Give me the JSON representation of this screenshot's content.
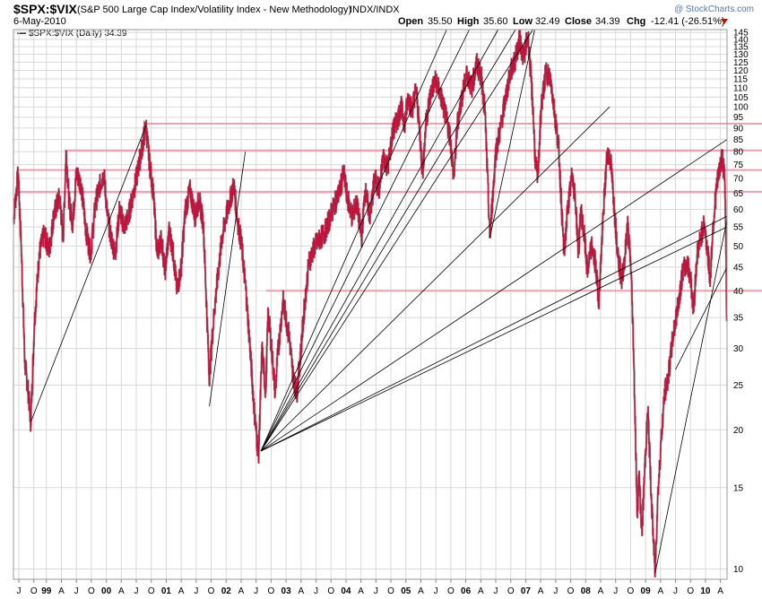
{
  "header": {
    "symbol": "$SPX:$VIX",
    "description": "(S&P 500 Large Cap Index/Volatility Index - New Methodology)",
    "exchange": "INDX/INDX",
    "date": "6-May-2010",
    "watermark": "@ StockCharts.com",
    "legend": "$SPX:$VIX (Daily) 34.39",
    "ohlc": [
      {
        "label": "Open",
        "value": "35.50"
      },
      {
        "label": "High",
        "value": "35.60"
      },
      {
        "label": "Low",
        "value": "32.49"
      },
      {
        "label": "Close",
        "value": "34.39"
      },
      {
        "label": "Chg",
        "value": "-12.41 (-26.51%)"
      }
    ]
  },
  "colors": {
    "price": "#c0143c",
    "price_dark": "#3a0a14",
    "grid": "#d8d8d8",
    "hline": "#e8a0b0",
    "trend": "#000000",
    "chg_arrow": "#cc0000"
  },
  "chart_data": {
    "type": "line",
    "scale": "log",
    "ylim": [
      9.5,
      147
    ],
    "x_range": [
      1998.45,
      2010.36
    ],
    "y_ticks": [
      10,
      15,
      20,
      25,
      30,
      35,
      40,
      45,
      50,
      55,
      60,
      65,
      70,
      75,
      80,
      85,
      90,
      95,
      100,
      105,
      110,
      115,
      120,
      125,
      130,
      135,
      140,
      145
    ],
    "x_ticks": [
      {
        "t": 1998.54,
        "label": "J",
        "bold": false
      },
      {
        "t": 1998.79,
        "label": "O",
        "bold": false
      },
      {
        "t": 1999.0,
        "label": "99",
        "bold": true
      },
      {
        "t": 1999.25,
        "label": "A",
        "bold": false
      },
      {
        "t": 1999.5,
        "label": "J",
        "bold": false
      },
      {
        "t": 1999.75,
        "label": "O",
        "bold": false
      },
      {
        "t": 2000.0,
        "label": "00",
        "bold": true
      },
      {
        "t": 2000.25,
        "label": "A",
        "bold": false
      },
      {
        "t": 2000.5,
        "label": "J",
        "bold": false
      },
      {
        "t": 2000.75,
        "label": "O",
        "bold": false
      },
      {
        "t": 2001.0,
        "label": "01",
        "bold": true
      },
      {
        "t": 2001.25,
        "label": "A",
        "bold": false
      },
      {
        "t": 2001.5,
        "label": "J",
        "bold": false
      },
      {
        "t": 2001.75,
        "label": "O",
        "bold": false
      },
      {
        "t": 2002.0,
        "label": "02",
        "bold": true
      },
      {
        "t": 2002.25,
        "label": "A",
        "bold": false
      },
      {
        "t": 2002.5,
        "label": "J",
        "bold": false
      },
      {
        "t": 2002.75,
        "label": "O",
        "bold": false
      },
      {
        "t": 2003.0,
        "label": "03",
        "bold": true
      },
      {
        "t": 2003.25,
        "label": "A",
        "bold": false
      },
      {
        "t": 2003.5,
        "label": "J",
        "bold": false
      },
      {
        "t": 2003.75,
        "label": "O",
        "bold": false
      },
      {
        "t": 2004.0,
        "label": "04",
        "bold": true
      },
      {
        "t": 2004.25,
        "label": "A",
        "bold": false
      },
      {
        "t": 2004.5,
        "label": "J",
        "bold": false
      },
      {
        "t": 2004.75,
        "label": "O",
        "bold": false
      },
      {
        "t": 2005.0,
        "label": "05",
        "bold": true
      },
      {
        "t": 2005.25,
        "label": "A",
        "bold": false
      },
      {
        "t": 2005.5,
        "label": "J",
        "bold": false
      },
      {
        "t": 2005.75,
        "label": "O",
        "bold": false
      },
      {
        "t": 2006.0,
        "label": "06",
        "bold": true
      },
      {
        "t": 2006.25,
        "label": "A",
        "bold": false
      },
      {
        "t": 2006.5,
        "label": "J",
        "bold": false
      },
      {
        "t": 2006.75,
        "label": "O",
        "bold": false
      },
      {
        "t": 2007.0,
        "label": "07",
        "bold": true
      },
      {
        "t": 2007.25,
        "label": "A",
        "bold": false
      },
      {
        "t": 2007.5,
        "label": "J",
        "bold": false
      },
      {
        "t": 2007.75,
        "label": "O",
        "bold": false
      },
      {
        "t": 2008.0,
        "label": "08",
        "bold": true
      },
      {
        "t": 2008.25,
        "label": "A",
        "bold": false
      },
      {
        "t": 2008.5,
        "label": "J",
        "bold": false
      },
      {
        "t": 2008.75,
        "label": "O",
        "bold": false
      },
      {
        "t": 2009.0,
        "label": "09",
        "bold": true
      },
      {
        "t": 2009.25,
        "label": "A",
        "bold": false
      },
      {
        "t": 2009.5,
        "label": "J",
        "bold": false
      },
      {
        "t": 2009.75,
        "label": "O",
        "bold": false
      },
      {
        "t": 2010.0,
        "label": "10",
        "bold": true
      },
      {
        "t": 2010.25,
        "label": "A",
        "bold": false
      }
    ],
    "price_series": [
      [
        1998.45,
        57
      ],
      [
        1998.53,
        72
      ],
      [
        1998.58,
        50
      ],
      [
        1998.64,
        28
      ],
      [
        1998.7,
        24
      ],
      [
        1998.74,
        20.8
      ],
      [
        1998.8,
        34
      ],
      [
        1998.88,
        48
      ],
      [
        1998.96,
        53
      ],
      [
        1999.05,
        49
      ],
      [
        1999.12,
        58
      ],
      [
        1999.22,
        64
      ],
      [
        1999.28,
        52
      ],
      [
        1999.33,
        80
      ],
      [
        1999.38,
        62
      ],
      [
        1999.44,
        56
      ],
      [
        1999.5,
        72
      ],
      [
        1999.58,
        68
      ],
      [
        1999.66,
        54
      ],
      [
        1999.74,
        48
      ],
      [
        1999.82,
        62
      ],
      [
        1999.9,
        68
      ],
      [
        1999.96,
        72
      ],
      [
        2000.02,
        58
      ],
      [
        2000.08,
        52
      ],
      [
        2000.15,
        48
      ],
      [
        2000.22,
        60
      ],
      [
        2000.3,
        55
      ],
      [
        2000.37,
        58
      ],
      [
        2000.45,
        65
      ],
      [
        2000.52,
        72
      ],
      [
        2000.6,
        82
      ],
      [
        2000.66,
        91
      ],
      [
        2000.72,
        76
      ],
      [
        2000.78,
        66
      ],
      [
        2000.85,
        48
      ],
      [
        2000.92,
        52
      ],
      [
        2000.98,
        44
      ],
      [
        2001.05,
        54
      ],
      [
        2001.12,
        48
      ],
      [
        2001.18,
        40
      ],
      [
        2001.25,
        45
      ],
      [
        2001.32,
        60
      ],
      [
        2001.4,
        66
      ],
      [
        2001.48,
        58
      ],
      [
        2001.55,
        63
      ],
      [
        2001.62,
        56
      ],
      [
        2001.67,
        38
      ],
      [
        2001.72,
        26
      ],
      [
        2001.8,
        36
      ],
      [
        2001.87,
        44
      ],
      [
        2001.93,
        52
      ],
      [
        2002.0,
        58
      ],
      [
        2002.08,
        64
      ],
      [
        2002.13,
        68
      ],
      [
        2002.18,
        58
      ],
      [
        2002.26,
        50
      ],
      [
        2002.33,
        40
      ],
      [
        2002.4,
        30
      ],
      [
        2002.47,
        22
      ],
      [
        2002.54,
        17.5
      ],
      [
        2002.6,
        30
      ],
      [
        2002.66,
        24
      ],
      [
        2002.7,
        36
      ],
      [
        2002.75,
        31
      ],
      [
        2002.82,
        24
      ],
      [
        2002.86,
        29
      ],
      [
        2002.95,
        38
      ],
      [
        2003.05,
        32
      ],
      [
        2003.12,
        26
      ],
      [
        2003.18,
        24
      ],
      [
        2003.25,
        30
      ],
      [
        2003.3,
        36
      ],
      [
        2003.38,
        46
      ],
      [
        2003.48,
        50
      ],
      [
        2003.58,
        52
      ],
      [
        2003.66,
        54
      ],
      [
        2003.74,
        58
      ],
      [
        2003.82,
        62
      ],
      [
        2003.9,
        66
      ],
      [
        2003.96,
        72
      ],
      [
        2004.02,
        64
      ],
      [
        2004.1,
        58
      ],
      [
        2004.18,
        62
      ],
      [
        2004.26,
        52
      ],
      [
        2004.32,
        66
      ],
      [
        2004.4,
        58
      ],
      [
        2004.48,
        70
      ],
      [
        2004.56,
        66
      ],
      [
        2004.62,
        78
      ],
      [
        2004.7,
        74
      ],
      [
        2004.78,
        88
      ],
      [
        2004.86,
        94
      ],
      [
        2004.92,
        100
      ],
      [
        2004.98,
        92
      ],
      [
        2005.04,
        106
      ],
      [
        2005.1,
        98
      ],
      [
        2005.17,
        110
      ],
      [
        2005.22,
        92
      ],
      [
        2005.28,
        72
      ],
      [
        2005.34,
        94
      ],
      [
        2005.42,
        108
      ],
      [
        2005.5,
        114
      ],
      [
        2005.58,
        106
      ],
      [
        2005.66,
        96
      ],
      [
        2005.74,
        86
      ],
      [
        2005.8,
        70
      ],
      [
        2005.86,
        92
      ],
      [
        2005.94,
        106
      ],
      [
        2006.02,
        118
      ],
      [
        2006.1,
        110
      ],
      [
        2006.18,
        124
      ],
      [
        2006.26,
        116
      ],
      [
        2006.32,
        98
      ],
      [
        2006.36,
        72
      ],
      [
        2006.4,
        52
      ],
      [
        2006.45,
        64
      ],
      [
        2006.5,
        80
      ],
      [
        2006.58,
        90
      ],
      [
        2006.66,
        104
      ],
      [
        2006.74,
        118
      ],
      [
        2006.82,
        126
      ],
      [
        2006.9,
        140
      ],
      [
        2006.96,
        128
      ],
      [
        2007.04,
        142
      ],
      [
        2007.08,
        120
      ],
      [
        2007.12,
        100
      ],
      [
        2007.16,
        76
      ],
      [
        2007.2,
        70
      ],
      [
        2007.26,
        100
      ],
      [
        2007.34,
        120
      ],
      [
        2007.42,
        114
      ],
      [
        2007.48,
        98
      ],
      [
        2007.55,
        82
      ],
      [
        2007.6,
        60
      ],
      [
        2007.64,
        48
      ],
      [
        2007.7,
        60
      ],
      [
        2007.78,
        72
      ],
      [
        2007.84,
        60
      ],
      [
        2007.88,
        48
      ],
      [
        2007.92,
        60
      ],
      [
        2007.98,
        52
      ],
      [
        2008.03,
        44
      ],
      [
        2008.1,
        50
      ],
      [
        2008.16,
        46
      ],
      [
        2008.22,
        38
      ],
      [
        2008.3,
        60
      ],
      [
        2008.36,
        80
      ],
      [
        2008.42,
        76
      ],
      [
        2008.48,
        60
      ],
      [
        2008.54,
        48
      ],
      [
        2008.6,
        42
      ],
      [
        2008.66,
        48
      ],
      [
        2008.7,
        56
      ],
      [
        2008.76,
        44
      ],
      [
        2008.8,
        30
      ],
      [
        2008.83,
        20
      ],
      [
        2008.86,
        13
      ],
      [
        2008.89,
        16
      ],
      [
        2008.94,
        12
      ],
      [
        2009.0,
        18
      ],
      [
        2009.04,
        22
      ],
      [
        2009.1,
        14
      ],
      [
        2009.16,
        9.8
      ],
      [
        2009.2,
        14
      ],
      [
        2009.26,
        19
      ],
      [
        2009.32,
        24
      ],
      [
        2009.38,
        26
      ],
      [
        2009.46,
        32
      ],
      [
        2009.54,
        37
      ],
      [
        2009.62,
        44
      ],
      [
        2009.7,
        46
      ],
      [
        2009.76,
        42
      ],
      [
        2009.8,
        36
      ],
      [
        2009.86,
        48
      ],
      [
        2009.92,
        52
      ],
      [
        2009.98,
        56
      ],
      [
        2010.04,
        48
      ],
      [
        2010.08,
        42
      ],
      [
        2010.12,
        54
      ],
      [
        2010.18,
        66
      ],
      [
        2010.24,
        74
      ],
      [
        2010.28,
        78
      ],
      [
        2010.32,
        70
      ],
      [
        2010.34,
        54
      ],
      [
        2010.355,
        34.39
      ]
    ],
    "horizontal_lines": [
      {
        "y": 92,
        "t_start": 2000.65
      },
      {
        "y": 80.5,
        "t_start": 1999.3
      },
      {
        "y": 73,
        "t_start": 1998.52
      },
      {
        "y": 65.5,
        "t_start": 1998.52
      },
      {
        "y": 40,
        "t_start": 2002.67
      }
    ],
    "trend_lines": [
      [
        [
          1998.74,
          20.8
        ],
        [
          2000.66,
          91
        ]
      ],
      [
        [
          2001.72,
          22.5
        ],
        [
          2002.32,
          80
        ]
      ],
      [
        [
          2002.58,
          18
        ],
        [
          2005.68,
          147
        ]
      ],
      [
        [
          2002.58,
          18
        ],
        [
          2006.06,
          147
        ]
      ],
      [
        [
          2002.58,
          18
        ],
        [
          2006.54,
          147
        ]
      ],
      [
        [
          2002.58,
          18
        ],
        [
          2006.83,
          147
        ]
      ],
      [
        [
          2002.58,
          18
        ],
        [
          2007.12,
          147
        ]
      ],
      [
        [
          2002.58,
          18
        ],
        [
          2008.4,
          100
        ]
      ],
      [
        [
          2002.58,
          18
        ],
        [
          2010.36,
          85
        ]
      ],
      [
        [
          2002.58,
          18
        ],
        [
          2010.36,
          58
        ]
      ],
      [
        [
          2002.58,
          18
        ],
        [
          2010.36,
          55
        ]
      ],
      [
        [
          2006.4,
          52
        ],
        [
          2007.15,
          147
        ]
      ],
      [
        [
          2009.16,
          9.8
        ],
        [
          2010.36,
          57
        ]
      ],
      [
        [
          2009.5,
          27
        ],
        [
          2010.36,
          45
        ]
      ]
    ]
  }
}
